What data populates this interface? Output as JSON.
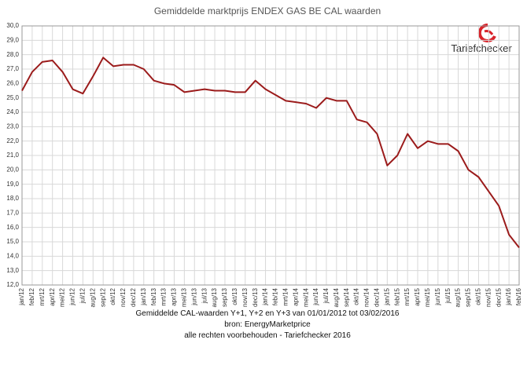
{
  "chart_data": {
    "type": "line",
    "title": "Gemiddelde marktprijs ENDEX GAS BE CAL waarden",
    "brand": "Tariefchecker",
    "footer": [
      "Gemiddelde CAL-waarden Y+1, Y+2 en Y+3 van 01/01/2012 tot 03/02/2016",
      "bron: EnergyMarketprice",
      "alle rechten voorbehouden - Tariefchecker 2016"
    ],
    "categories": [
      "jan/12",
      "feb/12",
      "mrt/12",
      "apr/12",
      "mei/12",
      "jun/12",
      "jul/12",
      "aug/12",
      "sep/12",
      "okt/12",
      "nov/12",
      "dec/12",
      "jan/13",
      "feb/13",
      "mrt/13",
      "apr/13",
      "mei/13",
      "jun/13",
      "jul/13",
      "aug/13",
      "sep/13",
      "okt/13",
      "nov/13",
      "dec/13",
      "jan/14",
      "feb/14",
      "mrt/14",
      "apr/14",
      "mei/14",
      "jun/14",
      "jul/14",
      "aug/14",
      "sep/14",
      "okt/14",
      "nov/14",
      "dec/14",
      "jan/15",
      "feb/15",
      "mrt/15",
      "apr/15",
      "mei/15",
      "jun/15",
      "jul/15",
      "aug/15",
      "sep/15",
      "okt/15",
      "nov/15",
      "dec/15",
      "jan/16",
      "feb/16"
    ],
    "series": [
      {
        "color": "#9b1b1b",
        "values": [
          25.5,
          26.8,
          27.5,
          27.6,
          26.8,
          25.6,
          25.3,
          26.5,
          27.8,
          27.2,
          27.3,
          27.3,
          27.0,
          26.2,
          26.0,
          25.9,
          25.4,
          25.5,
          25.6,
          25.5,
          25.5,
          25.4,
          25.4,
          26.2,
          25.6,
          25.2,
          24.8,
          24.7,
          24.6,
          24.3,
          25.0,
          24.8,
          24.8,
          23.5,
          23.3,
          22.5,
          20.3,
          21.0,
          22.5,
          21.5,
          22.0,
          21.8,
          21.8,
          21.3,
          20.0,
          19.5,
          18.5,
          17.5,
          15.5,
          14.6
        ]
      }
    ],
    "ylim": [
      12,
      30
    ],
    "yticks": [
      {
        "value": 12,
        "label": "12,0"
      },
      {
        "value": 13,
        "label": "13,0"
      },
      {
        "value": 14,
        "label": "14,0"
      },
      {
        "value": 15,
        "label": "15,0"
      },
      {
        "value": 16,
        "label": "16,0"
      },
      {
        "value": 17,
        "label": "17,0"
      },
      {
        "value": 18,
        "label": "18,0"
      },
      {
        "value": 19,
        "label": "19,0"
      },
      {
        "value": 20,
        "label": "20,0"
      },
      {
        "value": 21,
        "label": "21,0"
      },
      {
        "value": 22,
        "label": "22,0"
      },
      {
        "value": 23,
        "label": "23,0"
      },
      {
        "value": 24,
        "label": "24,0"
      },
      {
        "value": 25,
        "label": "25,0"
      },
      {
        "value": 26,
        "label": "26,0"
      },
      {
        "value": 27,
        "label": "27,0"
      },
      {
        "value": 28,
        "label": "28,0"
      },
      {
        "value": 29,
        "label": "29,0"
      },
      {
        "value": 30,
        "label": "30,0"
      }
    ],
    "grid": true
  }
}
